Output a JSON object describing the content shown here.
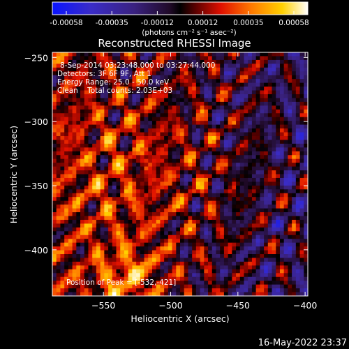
{
  "colorbar": {
    "tick_labels": [
      "-0.00058",
      "-0.00035",
      "-0.00012",
      "0.00012",
      "0.00035",
      "0.00058"
    ],
    "min": -0.00058,
    "max": 0.00058,
    "units_label": "(photons cm⁻² s⁻¹ asec⁻²)"
  },
  "chart_data": {
    "type": "heatmap",
    "title": "Reconstructed RHESSI Image",
    "xlabel": "Heliocentric X (arcsec)",
    "ylabel": "Heliocentric Y (arcsec)",
    "xlim": [
      -588,
      -398
    ],
    "ylim": [
      -436,
      -246
    ],
    "x_ticks": [
      -550,
      -500,
      -450,
      -400
    ],
    "x_tick_labels": [
      "−550",
      "−500",
      "−450",
      "−400"
    ],
    "y_ticks": [
      -250,
      -300,
      -350,
      -400
    ],
    "y_tick_labels": [
      "−250",
      "−300",
      "−350",
      "−400"
    ],
    "colormap": "blue-purple-black-red-orange-yellow-white",
    "peak": [
      -532,
      -421
    ]
  },
  "annotations": {
    "line1": "8-Sep-2014 03:23:48.000 to 03:27:44.000",
    "line2": "Detectors: 3F 6F 9F, Att 1",
    "line3": "Energy Range: 25.0 - 50.0 keV",
    "line4": "Clean    Total counts: 2.03E+03",
    "peak_label": "Position of Peak = [-532,-421]"
  },
  "footer": {
    "timestamp": "16-May-2022 23:37"
  }
}
